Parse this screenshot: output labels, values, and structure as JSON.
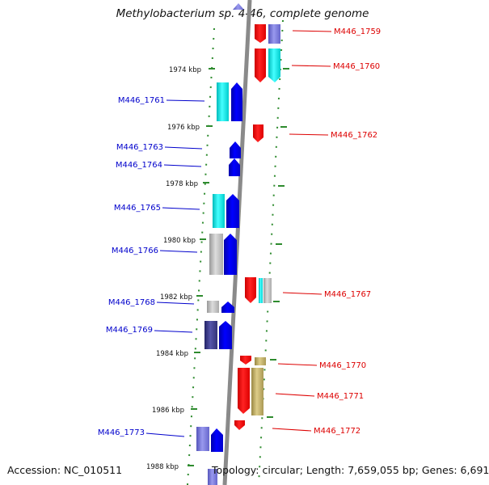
{
  "header": {
    "title": "Methylobacterium sp. 4-46, complete genome"
  },
  "footer": {
    "accession": "Accession: NC_010511",
    "summary": "Topology: circular; Length: 7,659,055 bp; Genes: 6,691"
  },
  "colors": {
    "backbone": "#8a8a8a",
    "tick": "#2e8b2e",
    "strand_left_label": "#0000cc",
    "strand_right_label": "#dd0000",
    "gene_blue": "#0000ff",
    "gene_cyan": "#00dddd",
    "gene_red": "#ff0000",
    "gene_grey": "#bbbbbb",
    "gene_navy": "#333399",
    "gene_lavender": "#7777dd",
    "gene_khaki": "#bbaa66"
  },
  "scale_labels": [
    "1974 kbp",
    "1976 kbp",
    "1978 kbp",
    "1980 kbp",
    "1982 kbp",
    "1984 kbp",
    "1986 kbp",
    "1988 kbp"
  ],
  "left_genes": [
    "M446_1761",
    "M446_1763",
    "M446_1764",
    "M446_1765",
    "M446_1766",
    "M446_1768",
    "M446_1769",
    "M446_1773"
  ],
  "right_genes": [
    "M446_1759",
    "M446_1760",
    "M446_1762",
    "M446_1767",
    "M446_1770",
    "M446_1771",
    "M446_1772"
  ]
}
